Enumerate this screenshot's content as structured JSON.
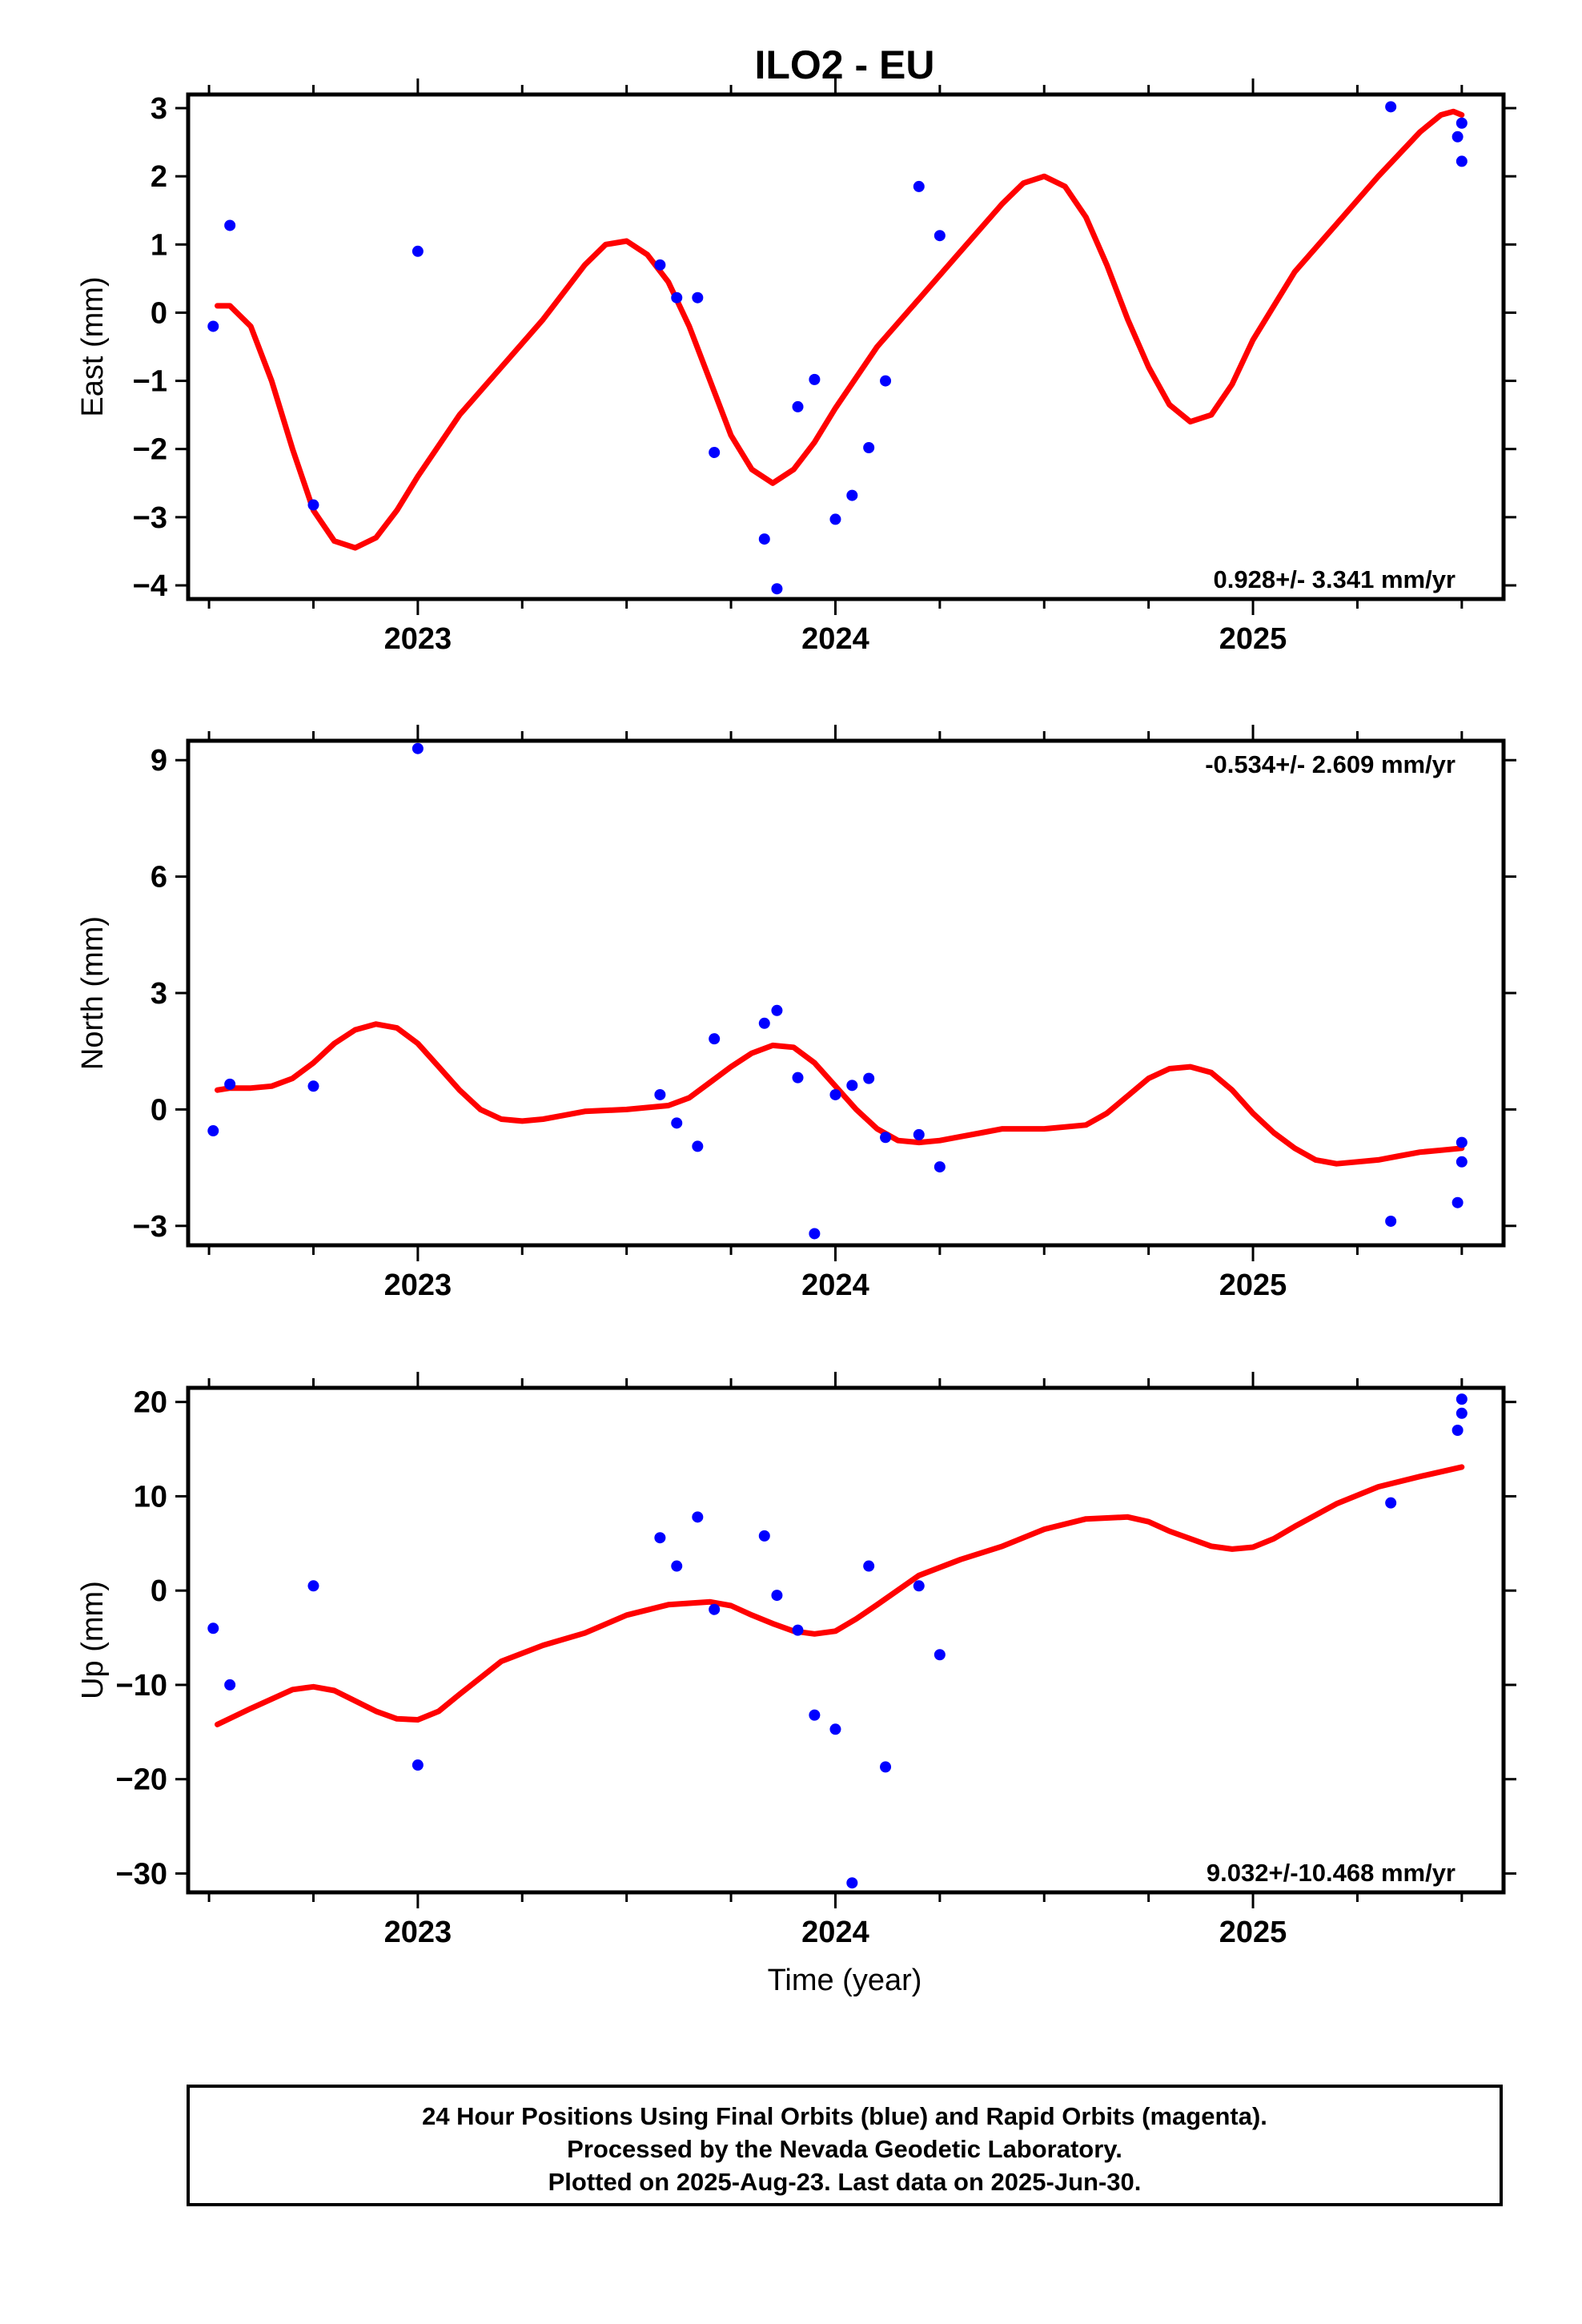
{
  "chart_data": [
    {
      "type": "scatter",
      "title": "ILO2 - EU",
      "ylabel": "East (mm)",
      "xlabel": "",
      "xlim": [
        2022.45,
        2025.6
      ],
      "ylim": [
        -4.2,
        3.2
      ],
      "yticks": [
        -4,
        -3,
        -2,
        -1,
        0,
        1,
        2,
        3
      ],
      "xticks": [
        2023,
        2024,
        2025
      ],
      "rate_text": "0.928+/- 3.341 mm/yr",
      "rate_position": "bottom-right",
      "points_x": [
        2022.51,
        2022.55,
        2022.75,
        2023.0,
        2023.58,
        2023.62,
        2023.67,
        2023.71,
        2023.83,
        2023.86,
        2023.91,
        2023.95,
        2024.0,
        2024.04,
        2024.08,
        2024.12,
        2024.2,
        2024.25,
        2025.33,
        2025.49,
        2025.5,
        2025.5
      ],
      "points_y": [
        -0.2,
        1.28,
        -2.82,
        0.9,
        0.7,
        0.22,
        0.22,
        -2.05,
        -3.32,
        -4.05,
        -1.38,
        -0.98,
        -3.03,
        -2.68,
        -1.98,
        -1.0,
        1.85,
        1.13,
        3.02,
        2.58,
        2.22,
        2.78
      ],
      "fit_x": [
        2022.52,
        2022.55,
        2022.6,
        2022.65,
        2022.7,
        2022.75,
        2022.8,
        2022.85,
        2022.9,
        2022.95,
        2023.0,
        2023.1,
        2023.2,
        2023.3,
        2023.4,
        2023.45,
        2023.5,
        2023.55,
        2023.6,
        2023.65,
        2023.7,
        2023.75,
        2023.8,
        2023.85,
        2023.9,
        2023.95,
        2024.0,
        2024.1,
        2024.2,
        2024.3,
        2024.4,
        2024.45,
        2024.5,
        2024.55,
        2024.6,
        2024.65,
        2024.7,
        2024.75,
        2024.8,
        2024.85,
        2024.9,
        2024.95,
        2025.0,
        2025.1,
        2025.2,
        2025.3,
        2025.4,
        2025.45,
        2025.48,
        2025.5
      ],
      "fit_y": [
        0.1,
        0.1,
        -0.2,
        -1.0,
        -2.0,
        -2.9,
        -3.35,
        -3.45,
        -3.3,
        -2.9,
        -2.4,
        -1.5,
        -0.8,
        -0.1,
        0.7,
        1.0,
        1.05,
        0.85,
        0.45,
        -0.2,
        -1.0,
        -1.8,
        -2.3,
        -2.5,
        -2.3,
        -1.9,
        -1.4,
        -0.5,
        0.2,
        0.9,
        1.6,
        1.9,
        2.0,
        1.85,
        1.4,
        0.7,
        -0.1,
        -0.8,
        -1.35,
        -1.6,
        -1.5,
        -1.05,
        -0.4,
        0.6,
        1.3,
        2.0,
        2.65,
        2.9,
        2.95,
        2.9
      ]
    },
    {
      "type": "scatter",
      "title": "",
      "ylabel": "North (mm)",
      "xlabel": "",
      "xlim": [
        2022.45,
        2025.6
      ],
      "ylim": [
        -3.5,
        9.5
      ],
      "yticks": [
        -3,
        0,
        3,
        6,
        9
      ],
      "xticks": [
        2023,
        2024,
        2025
      ],
      "rate_text": "-0.534+/- 2.609 mm/yr",
      "rate_position": "top-right",
      "points_x": [
        2022.51,
        2022.55,
        2022.75,
        2023.0,
        2023.58,
        2023.62,
        2023.67,
        2023.71,
        2023.83,
        2023.86,
        2023.91,
        2023.95,
        2024.0,
        2024.04,
        2024.08,
        2024.12,
        2024.2,
        2024.25,
        2025.33,
        2025.49,
        2025.5,
        2025.5
      ],
      "points_y": [
        -0.55,
        0.65,
        0.6,
        9.3,
        0.38,
        -0.35,
        -0.95,
        1.82,
        2.22,
        2.55,
        0.82,
        -3.2,
        0.38,
        0.62,
        0.8,
        -0.72,
        -0.65,
        -1.48,
        -2.88,
        -2.4,
        -1.35,
        -0.85
      ],
      "fit_x": [
        2022.52,
        2022.55,
        2022.6,
        2022.65,
        2022.7,
        2022.75,
        2022.8,
        2022.85,
        2022.9,
        2022.95,
        2023.0,
        2023.05,
        2023.1,
        2023.15,
        2023.2,
        2023.25,
        2023.3,
        2023.35,
        2023.4,
        2023.5,
        2023.6,
        2023.65,
        2023.7,
        2023.75,
        2023.8,
        2023.85,
        2023.9,
        2023.95,
        2024.0,
        2024.05,
        2024.1,
        2024.15,
        2024.2,
        2024.25,
        2024.3,
        2024.35,
        2024.4,
        2024.5,
        2024.6,
        2024.65,
        2024.7,
        2024.75,
        2024.8,
        2024.85,
        2024.9,
        2024.95,
        2025.0,
        2025.05,
        2025.1,
        2025.15,
        2025.2,
        2025.25,
        2025.3,
        2025.35,
        2025.4,
        2025.45,
        2025.5
      ],
      "fit_y": [
        0.5,
        0.55,
        0.55,
        0.6,
        0.8,
        1.2,
        1.7,
        2.05,
        2.2,
        2.1,
        1.7,
        1.1,
        0.5,
        0.0,
        -0.25,
        -0.3,
        -0.25,
        -0.15,
        -0.05,
        0.0,
        0.1,
        0.3,
        0.7,
        1.1,
        1.45,
        1.65,
        1.6,
        1.2,
        0.6,
        0.0,
        -0.5,
        -0.8,
        -0.85,
        -0.8,
        -0.7,
        -0.6,
        -0.5,
        -0.5,
        -0.4,
        -0.1,
        0.35,
        0.8,
        1.05,
        1.1,
        0.95,
        0.5,
        -0.1,
        -0.6,
        -1.0,
        -1.3,
        -1.4,
        -1.35,
        -1.3,
        -1.2,
        -1.1,
        -1.05,
        -1.0
      ]
    },
    {
      "type": "scatter",
      "title": "",
      "ylabel": "Up (mm)",
      "xlabel": "Time (year)",
      "xlim": [
        2022.45,
        2025.6
      ],
      "ylim": [
        -32,
        21.5
      ],
      "yticks": [
        -30,
        -20,
        -10,
        0,
        10,
        20
      ],
      "xticks": [
        2023,
        2024,
        2025
      ],
      "rate_text": "9.032+/-10.468 mm/yr",
      "rate_position": "bottom-right",
      "points_x": [
        2022.51,
        2022.55,
        2022.75,
        2023.0,
        2023.58,
        2023.62,
        2023.67,
        2023.71,
        2023.83,
        2023.86,
        2023.91,
        2023.95,
        2024.0,
        2024.04,
        2024.08,
        2024.12,
        2024.2,
        2024.25,
        2025.33,
        2025.49,
        2025.5,
        2025.5
      ],
      "points_y": [
        -4.0,
        -10.0,
        0.5,
        -18.5,
        5.6,
        2.6,
        7.8,
        -2.0,
        5.8,
        -0.5,
        -4.2,
        -13.2,
        -14.7,
        -31.0,
        2.6,
        -18.7,
        0.5,
        -6.8,
        9.3,
        17.0,
        18.8,
        20.3
      ],
      "fit_x": [
        2022.52,
        2022.6,
        2022.7,
        2022.75,
        2022.8,
        2022.9,
        2022.95,
        2023.0,
        2023.05,
        2023.1,
        2023.2,
        2023.3,
        2023.4,
        2023.5,
        2023.6,
        2023.7,
        2023.75,
        2023.8,
        2023.85,
        2023.9,
        2023.95,
        2024.0,
        2024.05,
        2024.1,
        2024.2,
        2024.3,
        2024.4,
        2024.5,
        2024.6,
        2024.7,
        2024.75,
        2024.8,
        2024.9,
        2024.95,
        2025.0,
        2025.05,
        2025.1,
        2025.2,
        2025.3,
        2025.4,
        2025.5
      ],
      "fit_y": [
        -14.2,
        -12.5,
        -10.5,
        -10.2,
        -10.6,
        -12.8,
        -13.6,
        -13.7,
        -12.8,
        -11.0,
        -7.5,
        -5.8,
        -4.5,
        -2.6,
        -1.5,
        -1.2,
        -1.6,
        -2.6,
        -3.5,
        -4.3,
        -4.6,
        -4.3,
        -3.0,
        -1.5,
        1.6,
        3.3,
        4.7,
        6.5,
        7.6,
        7.8,
        7.3,
        6.3,
        4.7,
        4.4,
        4.6,
        5.5,
        6.8,
        9.2,
        11.0,
        12.1,
        13.1
      ]
    }
  ],
  "colors": {
    "points": "#0000ff",
    "fit": "#ff0000",
    "frame": "#000000"
  },
  "footer": {
    "line1": "24 Hour Positions Using Final Orbits (blue) and Rapid Orbits (magenta).",
    "line2": "Processed by the Nevada Geodetic Laboratory.",
    "line3": "Plotted on 2025-Aug-23. Last data on 2025-Jun-30."
  }
}
